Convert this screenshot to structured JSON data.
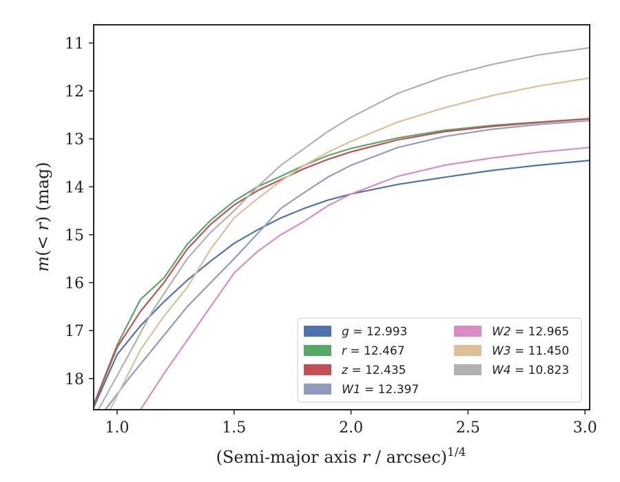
{
  "chart_data": {
    "type": "line",
    "title": "",
    "xlabel": "(Semi-major axis r / arcsec)",
    "xlabel_parts": [
      "(Semi-major axis ",
      "r",
      " / arcsec)",
      "1/4"
    ],
    "ylabel": "m(< r) (mag)",
    "ylabel_parts": [
      "m",
      "(< ",
      "r",
      ") (mag)"
    ],
    "xlim": [
      0.9,
      3.02
    ],
    "ylim": [
      18.65,
      10.62
    ],
    "y_inverted": true,
    "xticks": [
      1.0,
      1.5,
      2.0,
      2.5,
      3.0
    ],
    "xtick_labels": [
      "1.0",
      "1.5",
      "2.0",
      "2.5",
      "3.0"
    ],
    "yticks": [
      11,
      12,
      13,
      14,
      15,
      16,
      17,
      18
    ],
    "ytick_labels": [
      "11",
      "12",
      "13",
      "14",
      "15",
      "16",
      "17",
      "18"
    ],
    "grid": false,
    "legend_position": "bottom-right",
    "legend_columns": 2,
    "series": [
      {
        "name": "g = 12.993",
        "label_parts": [
          "g",
          " = 12.993"
        ],
        "color": "#4c72b0",
        "x": [
          0.9,
          1.0,
          1.1,
          1.2,
          1.3,
          1.4,
          1.5,
          1.6,
          1.7,
          1.8,
          1.9,
          2.0,
          2.2,
          2.4,
          2.6,
          2.8,
          3.02
        ],
        "y": [
          18.6,
          17.5,
          16.9,
          16.4,
          15.95,
          15.55,
          15.18,
          14.9,
          14.65,
          14.45,
          14.28,
          14.15,
          13.95,
          13.8,
          13.66,
          13.55,
          13.45
        ]
      },
      {
        "name": "r = 12.467",
        "label_parts": [
          "r",
          " = 12.467"
        ],
        "color": "#55a868",
        "x": [
          0.9,
          1.0,
          1.1,
          1.2,
          1.3,
          1.4,
          1.5,
          1.6,
          1.7,
          1.8,
          1.9,
          2.0,
          2.2,
          2.4,
          2.6,
          2.8,
          3.02
        ],
        "y": [
          18.55,
          17.3,
          16.35,
          15.9,
          15.2,
          14.7,
          14.3,
          14.0,
          13.78,
          13.55,
          13.35,
          13.2,
          12.98,
          12.82,
          12.72,
          12.65,
          12.58
        ]
      },
      {
        "name": "z = 12.435",
        "label_parts": [
          "z",
          " = 12.435"
        ],
        "color": "#c44e52",
        "x": [
          0.9,
          1.0,
          1.1,
          1.2,
          1.3,
          1.4,
          1.5,
          1.6,
          1.7,
          1.8,
          1.9,
          2.0,
          2.2,
          2.4,
          2.6,
          2.8,
          3.02
        ],
        "y": [
          18.55,
          17.35,
          16.6,
          16.0,
          15.3,
          14.78,
          14.38,
          14.08,
          13.85,
          13.62,
          13.43,
          13.27,
          13.02,
          12.85,
          12.74,
          12.66,
          12.58
        ]
      },
      {
        "name": "W1 = 12.397",
        "label_parts": [
          "W1",
          " = 12.397"
        ],
        "color": "#8c9dc0",
        "x": [
          0.95,
          1.05,
          1.15,
          1.3,
          1.4,
          1.5,
          1.6,
          1.7,
          1.8,
          1.9,
          2.0,
          2.2,
          2.4,
          2.6,
          2.8,
          3.02
        ],
        "y": [
          18.65,
          18.0,
          17.4,
          16.5,
          16.0,
          15.5,
          14.98,
          14.45,
          14.12,
          13.8,
          13.55,
          13.18,
          12.95,
          12.8,
          12.7,
          12.62
        ]
      },
      {
        "name": "W2 = 12.965",
        "label_parts": [
          "W2",
          " = 12.965"
        ],
        "color": "#da8bc3",
        "x": [
          1.1,
          1.2,
          1.3,
          1.4,
          1.5,
          1.6,
          1.7,
          1.8,
          1.9,
          2.0,
          2.2,
          2.4,
          2.6,
          2.8,
          3.02
        ],
        "y": [
          18.65,
          17.9,
          17.2,
          16.5,
          15.8,
          15.35,
          15.0,
          14.72,
          14.4,
          14.15,
          13.78,
          13.55,
          13.4,
          13.28,
          13.18
        ]
      },
      {
        "name": "W3 = 11.450",
        "label_parts": [
          "W3",
          " = 11.450"
        ],
        "color": "#dcbf95",
        "x": [
          0.97,
          1.1,
          1.2,
          1.3,
          1.4,
          1.5,
          1.6,
          1.7,
          1.8,
          1.9,
          2.0,
          2.2,
          2.4,
          2.6,
          2.8,
          3.02
        ],
        "y": [
          18.65,
          17.4,
          16.7,
          16.1,
          15.3,
          14.65,
          14.25,
          13.88,
          13.55,
          13.28,
          13.05,
          12.65,
          12.35,
          12.1,
          11.9,
          11.73
        ]
      },
      {
        "name": "W4 = 10.823",
        "label_parts": [
          "W4",
          " = 10.823"
        ],
        "color": "#b0b0b0",
        "x": [
          0.92,
          1.05,
          1.15,
          1.3,
          1.4,
          1.5,
          1.6,
          1.7,
          1.8,
          1.9,
          2.0,
          2.2,
          2.4,
          2.6,
          2.8,
          3.02
        ],
        "y": [
          18.65,
          17.5,
          16.6,
          15.5,
          14.95,
          14.5,
          14.0,
          13.55,
          13.2,
          12.85,
          12.55,
          12.05,
          11.7,
          11.45,
          11.25,
          11.1
        ]
      }
    ]
  }
}
